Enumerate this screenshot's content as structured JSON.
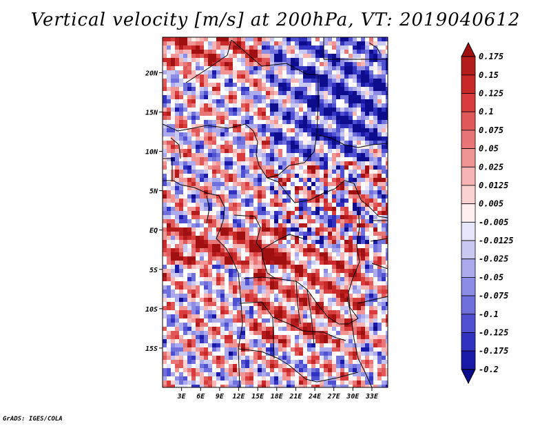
{
  "title": "Vertical velocity [m/s] at 200hPa, VT: 2019040612",
  "credit": "GrADS: IGES/COLA",
  "chart_data": {
    "type": "heatmap",
    "title": "Vertical velocity [m/s] at 200hPa, VT: 2019040612",
    "variable": "Vertical velocity",
    "units": "m/s",
    "level": "200hPa",
    "valid_time": "2019040612",
    "lon_range": [
      0,
      35.5
    ],
    "lat_range": [
      -20,
      24.5
    ],
    "x_ticks": [
      {
        "value": 3,
        "label": "3E"
      },
      {
        "value": 6,
        "label": "6E"
      },
      {
        "value": 9,
        "label": "9E"
      },
      {
        "value": 12,
        "label": "12E"
      },
      {
        "value": 15,
        "label": "15E"
      },
      {
        "value": 18,
        "label": "18E"
      },
      {
        "value": 21,
        "label": "21E"
      },
      {
        "value": 24,
        "label": "24E"
      },
      {
        "value": 27,
        "label": "27E"
      },
      {
        "value": 30,
        "label": "30E"
      },
      {
        "value": 33,
        "label": "33E"
      }
    ],
    "y_ticks": [
      {
        "value": 20,
        "label": "20N"
      },
      {
        "value": 15,
        "label": "15N"
      },
      {
        "value": 10,
        "label": "10N"
      },
      {
        "value": 5,
        "label": "5N"
      },
      {
        "value": 0,
        "label": "EQ"
      },
      {
        "value": -5,
        "label": "5S"
      },
      {
        "value": -10,
        "label": "10S"
      },
      {
        "value": -15,
        "label": "15S"
      }
    ],
    "colorbar": {
      "levels": [
        "0.175",
        "0.15",
        "0.125",
        "0.1",
        "0.075",
        "0.05",
        "0.025",
        "0.0125",
        "0.005",
        "-0.005",
        "-0.0125",
        "-0.025",
        "-0.05",
        "-0.075",
        "-0.1",
        "-0.125",
        "-0.175",
        "-0.2"
      ],
      "colors": [
        "#a01010",
        "#b41c1c",
        "#c82828",
        "#d83c3c",
        "#e05858",
        "#e87676",
        "#f09494",
        "#f6b4b4",
        "#fad2d2",
        "#fff0f0",
        "#e6e6fa",
        "#c8c8f2",
        "#aaaaec",
        "#8c8ce6",
        "#7070dc",
        "#5050d2",
        "#3232c0",
        "#1a1aa8",
        "#0c0c8c"
      ]
    }
  }
}
